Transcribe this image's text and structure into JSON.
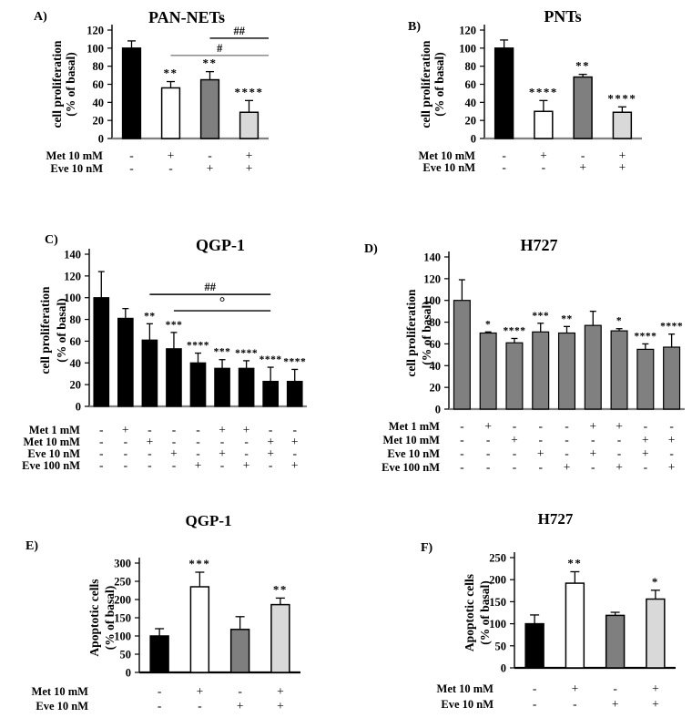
{
  "figure": {
    "background": "#ffffff",
    "bar_palette": {
      "black": "#000000",
      "white": "#ffffff",
      "dark_gray": "#7f7f7f",
      "light_gray": "#d9d9d9",
      "panel_d_gray": "#808080"
    }
  },
  "chart_data": [
    {
      "id": "A",
      "panel_label": "A)",
      "type": "bar",
      "title": "PAN-NETs",
      "ylabel": "cell proliferation (% of basal)",
      "ylabel_lines": [
        "cell proliferation",
        "(% of basal)"
      ],
      "ylim": [
        0,
        120
      ],
      "yticks": [
        0,
        20,
        40,
        60,
        80,
        100,
        120
      ],
      "values": [
        100,
        56,
        65,
        29
      ],
      "errors": [
        8,
        7,
        9,
        13
      ],
      "sig_labels": [
        "",
        "**",
        "**",
        "****"
      ],
      "bar_fills": [
        "#000000",
        "#ffffff",
        "#7f7f7f",
        "#d9d9d9"
      ],
      "sig_lines": [
        {
          "label": "#",
          "from_bar": 1,
          "to_bar": "edge",
          "y": 92,
          "color": "#808080"
        },
        {
          "label": "##",
          "from_bar": 2,
          "to_bar": "edge",
          "y": 111,
          "color": "#000000"
        }
      ],
      "treatments": {
        "rows": [
          {
            "label": "Met 10 mM",
            "values": [
              "-",
              "+",
              "-",
              "+"
            ]
          },
          {
            "label": "Eve 10 nM",
            "values": [
              "-",
              "-",
              "+",
              "+"
            ]
          }
        ]
      }
    },
    {
      "id": "B",
      "panel_label": "B)",
      "type": "bar",
      "title": "PNTs",
      "ylabel": "cell proliferation (% of basal)",
      "ylabel_lines": [
        "cell proliferation",
        "(% of basal)"
      ],
      "ylim": [
        0,
        120
      ],
      "yticks": [
        0,
        20,
        40,
        60,
        80,
        100,
        120
      ],
      "values": [
        100,
        30,
        68,
        29
      ],
      "errors": [
        9,
        12,
        3,
        6
      ],
      "sig_labels": [
        "",
        "****",
        "**",
        "****"
      ],
      "bar_fills": [
        "#000000",
        "#ffffff",
        "#7f7f7f",
        "#d9d9d9"
      ],
      "sig_lines": [],
      "treatments": {
        "rows": [
          {
            "label": "Met 10 mM",
            "values": [
              "-",
              "+",
              "-",
              "+"
            ]
          },
          {
            "label": "Eve 10 nM",
            "values": [
              "-",
              "-",
              "+",
              "+"
            ]
          }
        ]
      }
    },
    {
      "id": "C",
      "panel_label": "C)",
      "type": "bar",
      "title": "QGP-1",
      "ylabel": "cell proliferation (% of basal)",
      "ylabel_lines": [
        "cell proliferation",
        "(% of basal)"
      ],
      "ylim": [
        0,
        140
      ],
      "yticks": [
        0,
        20,
        40,
        60,
        80,
        100,
        120,
        140
      ],
      "values": [
        100,
        81,
        61,
        53,
        40,
        35,
        35,
        23,
        23
      ],
      "errors": [
        24,
        9,
        15,
        15,
        9,
        8,
        7,
        13,
        11
      ],
      "sig_labels": [
        "",
        "",
        "**",
        "***",
        "****",
        "***",
        "****",
        "****",
        "****"
      ],
      "bar_fills": [
        "#000000",
        "#000000",
        "#000000",
        "#000000",
        "#000000",
        "#000000",
        "#000000",
        "#000000",
        "#000000"
      ],
      "sig_lines": [
        {
          "label": "##",
          "from_bar": 2,
          "to_bar": 7,
          "y": 103,
          "color": "#000000"
        },
        {
          "label": "°",
          "from_bar": 3,
          "to_bar": 7,
          "y": 88,
          "color": "#000000"
        }
      ],
      "treatments": {
        "rows": [
          {
            "label": "Met 1 mM",
            "values": [
              "-",
              "+",
              "-",
              "-",
              "-",
              "+",
              "+",
              "-",
              "-"
            ]
          },
          {
            "label": "Met 10 mM",
            "values": [
              "-",
              "-",
              "+",
              "-",
              "-",
              "-",
              "-",
              "+",
              "+"
            ]
          },
          {
            "label": "Eve 10 nM",
            "values": [
              "-",
              "-",
              "-",
              "+",
              "-",
              "+",
              "-",
              "+",
              "-"
            ]
          },
          {
            "label": "Eve 100 nM",
            "values": [
              "-",
              "-",
              "-",
              "-",
              "+",
              "-",
              "+",
              "-",
              "+"
            ]
          }
        ]
      }
    },
    {
      "id": "D",
      "panel_label": "D)",
      "type": "bar",
      "title": "H727",
      "ylabel": "cell proliferation (% of basal)",
      "ylabel_lines": [
        "cell proliferation",
        "(% of basal)"
      ],
      "ylim": [
        0,
        140
      ],
      "yticks": [
        0,
        20,
        40,
        60,
        80,
        100,
        120,
        140
      ],
      "values": [
        100,
        70,
        61,
        71,
        70,
        77,
        72,
        55,
        57
      ],
      "errors": [
        19,
        1,
        4,
        8,
        6,
        13,
        2,
        5,
        12
      ],
      "sig_labels": [
        "",
        "*",
        "****",
        "***",
        "**",
        "",
        "*",
        "****",
        "****"
      ],
      "bar_fills": [
        "#808080",
        "#808080",
        "#808080",
        "#808080",
        "#808080",
        "#808080",
        "#808080",
        "#808080",
        "#808080"
      ],
      "sig_lines": [],
      "treatments": {
        "rows": [
          {
            "label": "Met 1 mM",
            "values": [
              "-",
              "+",
              "-",
              "-",
              "-",
              "+",
              "+",
              "-",
              "-"
            ]
          },
          {
            "label": "Met 10 mM",
            "values": [
              "-",
              "-",
              "+",
              "-",
              "-",
              "-",
              "-",
              "+",
              "+"
            ]
          },
          {
            "label": "Eve 10 nM",
            "values": [
              "-",
              "-",
              "-",
              "+",
              "-",
              "+",
              "-",
              "+",
              "-"
            ]
          },
          {
            "label": "Eve 100 nM",
            "values": [
              "-",
              "-",
              "-",
              "-",
              "+",
              "-",
              "+",
              "-",
              "+"
            ]
          }
        ]
      }
    },
    {
      "id": "E",
      "panel_label": "E)",
      "type": "bar",
      "title": "QGP-1",
      "ylabel": "Apoptotic cells (% of basal)",
      "ylabel_lines": [
        "Apoptotic cells",
        "(% of basal)"
      ],
      "ylim": [
        0,
        300
      ],
      "yticks": [
        0,
        50,
        100,
        150,
        200,
        250,
        300
      ],
      "values": [
        100,
        235,
        118,
        186
      ],
      "errors": [
        20,
        40,
        35,
        18
      ],
      "sig_labels": [
        "",
        "***",
        "",
        "**"
      ],
      "bar_fills": [
        "#000000",
        "#ffffff",
        "#7f7f7f",
        "#d9d9d9"
      ],
      "sig_lines": [],
      "treatments": {
        "rows": [
          {
            "label": "Met 10 mM",
            "values": [
              "-",
              "+",
              "-",
              "+"
            ]
          },
          {
            "label": "Eve 10 nM",
            "values": [
              "-",
              "-",
              "+",
              "+"
            ]
          }
        ]
      }
    },
    {
      "id": "F",
      "panel_label": "F)",
      "type": "bar",
      "title": "H727",
      "ylabel": "Apoptotic cells (% of basal)",
      "ylabel_lines": [
        "Apoptotic cells",
        "(% of basal)"
      ],
      "ylim": [
        0,
        250
      ],
      "yticks": [
        0,
        50,
        100,
        150,
        200,
        250
      ],
      "values": [
        100,
        192,
        119,
        156
      ],
      "errors": [
        20,
        26,
        7,
        20
      ],
      "sig_labels": [
        "",
        "**",
        "",
        "*"
      ],
      "bar_fills": [
        "#000000",
        "#ffffff",
        "#7f7f7f",
        "#d9d9d9"
      ],
      "sig_lines": [],
      "treatments": {
        "rows": [
          {
            "label": "Met 10 mM",
            "values": [
              "-",
              "+",
              "-",
              "+"
            ]
          },
          {
            "label": "Eve 10 nM",
            "values": [
              "-",
              "-",
              "+",
              "+"
            ]
          }
        ]
      }
    }
  ]
}
